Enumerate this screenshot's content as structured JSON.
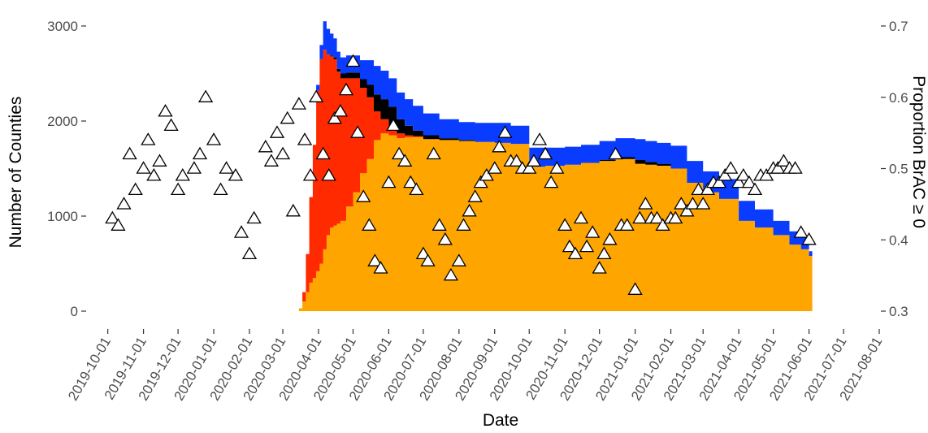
{
  "chart_data": {
    "type": "area",
    "xlabel": "Date",
    "ylabel": "Number of Counties",
    "y2label": "Proportion BrAC ≥ 0",
    "xlim": [
      "2019-09-15",
      "2021-08-01"
    ],
    "ylim": [
      0,
      3000
    ],
    "y2lim": [
      0.3,
      0.7
    ],
    "x_ticks": [
      "2019-10-01",
      "2019-11-01",
      "2019-12-01",
      "2020-01-01",
      "2020-02-01",
      "2020-03-01",
      "2020-04-01",
      "2020-05-01",
      "2020-06-01",
      "2020-07-01",
      "2020-08-01",
      "2020-09-01",
      "2020-10-01",
      "2020-11-01",
      "2020-12-01",
      "2021-01-01",
      "2021-02-01",
      "2021-03-01",
      "2021-04-01",
      "2021-05-01",
      "2021-06-01",
      "2021-07-01",
      "2021-08-01"
    ],
    "y_ticks": [
      0,
      1000,
      2000,
      3000
    ],
    "y2_ticks": [
      0.3,
      0.4,
      0.5,
      0.6,
      0.7
    ],
    "grid": false,
    "legend": "none",
    "colors": {
      "blue": "#0a3cff",
      "black": "#000000",
      "red": "#ff2a00",
      "orange": "#ffa500"
    },
    "stack_dates": [
      "2020-03-15",
      "2020-03-18",
      "2020-03-21",
      "2020-03-24",
      "2020-03-27",
      "2020-03-30",
      "2020-04-02",
      "2020-04-05",
      "2020-04-08",
      "2020-04-11",
      "2020-04-14",
      "2020-04-17",
      "2020-04-20",
      "2020-04-25",
      "2020-05-01",
      "2020-05-07",
      "2020-05-13",
      "2020-05-19",
      "2020-05-25",
      "2020-06-01",
      "2020-06-08",
      "2020-06-15",
      "2020-06-22",
      "2020-07-01",
      "2020-07-15",
      "2020-08-01",
      "2020-08-15",
      "2020-09-01",
      "2020-09-15",
      "2020-10-01",
      "2020-10-15",
      "2020-11-01",
      "2020-11-15",
      "2020-12-01",
      "2020-12-15",
      "2021-01-01",
      "2021-01-10",
      "2021-01-20",
      "2021-02-01",
      "2021-02-15",
      "2021-03-01",
      "2021-03-15",
      "2021-04-01",
      "2021-04-15",
      "2021-05-01",
      "2021-05-15",
      "2021-05-25",
      "2021-06-01"
    ],
    "series": [
      {
        "name": "",
        "color": "orange",
        "values": [
          30,
          100,
          200,
          300,
          350,
          420,
          500,
          650,
          800,
          880,
          900,
          920,
          950,
          1100,
          1250,
          1450,
          1600,
          1800,
          1870,
          1850,
          1820,
          1830,
          1830,
          1810,
          1800,
          1790,
          1780,
          1770,
          1760,
          1520,
          1530,
          1540,
          1560,
          1580,
          1600,
          1550,
          1540,
          1530,
          1500,
          1350,
          1250,
          1180,
          950,
          880,
          800,
          700,
          650,
          580
        ]
      },
      {
        "name": "",
        "color": "red",
        "values": [
          0,
          100,
          400,
          900,
          1400,
          1900,
          2150,
          2100,
          1900,
          1800,
          1750,
          1600,
          1500,
          1350,
          1200,
          900,
          650,
          300,
          150,
          100,
          50,
          20,
          10,
          0,
          0,
          0,
          0,
          0,
          0,
          0,
          0,
          0,
          0,
          0,
          0,
          0,
          0,
          0,
          0,
          0,
          0,
          0,
          0,
          0,
          0,
          0,
          0,
          0
        ]
      },
      {
        "name": "",
        "color": "black",
        "values": [
          0,
          0,
          0,
          0,
          0,
          0,
          0,
          0,
          0,
          10,
          20,
          30,
          50,
          60,
          60,
          90,
          130,
          180,
          210,
          200,
          150,
          100,
          60,
          40,
          20,
          10,
          0,
          0,
          0,
          0,
          0,
          0,
          0,
          10,
          20,
          40,
          30,
          20,
          0,
          0,
          0,
          0,
          0,
          0,
          0,
          0,
          0,
          0
        ]
      },
      {
        "name": "",
        "color": "blue",
        "values": [
          0,
          0,
          0,
          0,
          0,
          60,
          150,
          300,
          270,
          230,
          200,
          180,
          170,
          180,
          180,
          200,
          260,
          300,
          300,
          300,
          280,
          280,
          260,
          230,
          200,
          190,
          200,
          210,
          190,
          200,
          190,
          190,
          190,
          200,
          200,
          220,
          220,
          220,
          240,
          230,
          220,
          210,
          210,
          190,
          150,
          140,
          130,
          50
        ]
      }
    ],
    "points": {
      "shape": "triangle",
      "axis": "y2",
      "x": [
        "2019-10-05",
        "2019-10-10",
        "2019-10-15",
        "2019-10-20",
        "2019-10-25",
        "2019-11-01",
        "2019-11-05",
        "2019-11-10",
        "2019-11-15",
        "2019-11-20",
        "2019-11-25",
        "2019-12-01",
        "2019-12-05",
        "2019-12-15",
        "2019-12-20",
        "2019-12-25",
        "2020-01-01",
        "2020-01-07",
        "2020-01-12",
        "2020-01-20",
        "2020-01-25",
        "2020-02-01",
        "2020-02-05",
        "2020-02-15",
        "2020-02-20",
        "2020-02-25",
        "2020-03-01",
        "2020-03-05",
        "2020-03-10",
        "2020-03-15",
        "2020-03-20",
        "2020-03-25",
        "2020-03-30",
        "2020-04-05",
        "2020-04-10",
        "2020-04-15",
        "2020-04-20",
        "2020-04-25",
        "2020-05-01",
        "2020-05-05",
        "2020-05-10",
        "2020-05-15",
        "2020-05-20",
        "2020-05-25",
        "2020-06-01",
        "2020-06-05",
        "2020-06-10",
        "2020-06-15",
        "2020-06-20",
        "2020-06-25",
        "2020-07-01",
        "2020-07-05",
        "2020-07-10",
        "2020-07-15",
        "2020-07-20",
        "2020-07-25",
        "2020-08-01",
        "2020-08-05",
        "2020-08-10",
        "2020-08-15",
        "2020-08-20",
        "2020-08-25",
        "2020-09-01",
        "2020-09-05",
        "2020-09-10",
        "2020-09-15",
        "2020-09-20",
        "2020-09-25",
        "2020-10-01",
        "2020-10-05",
        "2020-10-10",
        "2020-10-15",
        "2020-10-20",
        "2020-10-25",
        "2020-11-01",
        "2020-11-05",
        "2020-11-10",
        "2020-11-15",
        "2020-11-20",
        "2020-11-25",
        "2020-12-01",
        "2020-12-05",
        "2020-12-10",
        "2020-12-15",
        "2020-12-20",
        "2020-12-25",
        "2021-01-01",
        "2021-01-05",
        "2021-01-10",
        "2021-01-15",
        "2021-01-20",
        "2021-01-25",
        "2021-02-01",
        "2021-02-05",
        "2021-02-10",
        "2021-02-15",
        "2021-02-20",
        "2021-02-25",
        "2021-03-01",
        "2021-03-05",
        "2021-03-10",
        "2021-03-15",
        "2021-03-20",
        "2021-03-25",
        "2021-04-01",
        "2021-04-05",
        "2021-04-10",
        "2021-04-15",
        "2021-04-20",
        "2021-04-25",
        "2021-05-01",
        "2021-05-05",
        "2021-05-10",
        "2021-05-15",
        "2021-05-20",
        "2021-05-25",
        "2021-06-01"
      ],
      "y": [
        0.43,
        0.42,
        0.45,
        0.52,
        0.47,
        0.5,
        0.54,
        0.49,
        0.51,
        0.58,
        0.56,
        0.47,
        0.49,
        0.5,
        0.52,
        0.6,
        0.54,
        0.47,
        0.5,
        0.49,
        0.41,
        0.38,
        0.43,
        0.53,
        0.51,
        0.55,
        0.52,
        0.57,
        0.44,
        0.59,
        0.54,
        0.49,
        0.6,
        0.52,
        0.49,
        0.57,
        0.58,
        0.61,
        0.65,
        0.55,
        0.46,
        0.42,
        0.37,
        0.36,
        0.48,
        0.56,
        0.52,
        0.51,
        0.48,
        0.47,
        0.38,
        0.37,
        0.52,
        0.42,
        0.4,
        0.35,
        0.37,
        0.42,
        0.44,
        0.46,
        0.48,
        0.49,
        0.5,
        0.53,
        0.55,
        0.51,
        0.51,
        0.5,
        0.5,
        0.51,
        0.54,
        0.52,
        0.48,
        0.5,
        0.42,
        0.39,
        0.38,
        0.43,
        0.39,
        0.41,
        0.36,
        0.38,
        0.4,
        0.52,
        0.42,
        0.42,
        0.33,
        0.43,
        0.45,
        0.43,
        0.43,
        0.42,
        0.43,
        0.43,
        0.45,
        0.44,
        0.45,
        0.47,
        0.45,
        0.47,
        0.48,
        0.48,
        0.49,
        0.5,
        0.48,
        0.49,
        0.48,
        0.47,
        0.49,
        0.49,
        0.5,
        0.5,
        0.51,
        0.5,
        0.5,
        0.41,
        0.4
      ]
    }
  }
}
